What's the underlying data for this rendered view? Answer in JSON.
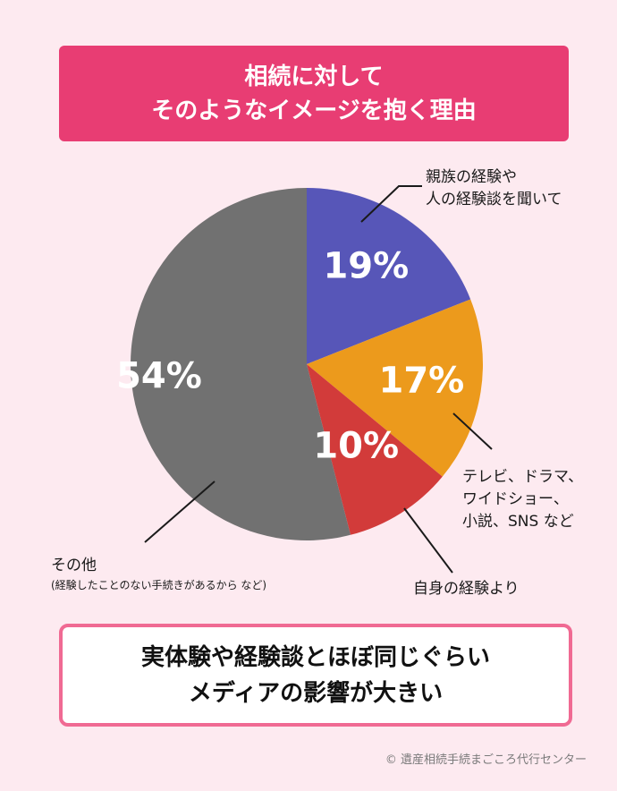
{
  "title": {
    "line1": "相続に対して",
    "line2": "そのようなイメージを抱く理由"
  },
  "chart_data": {
    "type": "pie",
    "slices": [
      {
        "name": "親族の経験や人の経験談を聞いて",
        "label_lines": [
          "親族の経験や",
          "人の経験談を聞いて"
        ],
        "value": 19,
        "value_label": "19%",
        "color": "#5756b8"
      },
      {
        "name": "テレビ、ドラマ、ワイドショー、小説、SNS など",
        "label_lines": [
          "テレビ、ドラマ、",
          "ワイドショー、",
          "小説、SNS など"
        ],
        "value": 17,
        "value_label": "17%",
        "color": "#ec9a1c"
      },
      {
        "name": "自身の経験より",
        "label_lines": [
          "自身の経験より"
        ],
        "value": 10,
        "value_label": "10%",
        "color": "#d23b3a"
      },
      {
        "name": "その他",
        "label_lines": [
          "その他"
        ],
        "sublabel": "(経験したことのない手続きがあるから など)",
        "value": 54,
        "value_label": "54%",
        "color": "#717171"
      }
    ]
  },
  "conclusion": {
    "line1": "実体験や経験談とほぼ同じぐらい",
    "line2": "メディアの影響が大きい"
  },
  "copyright": "© 遺産相続手続まごころ代行センター"
}
